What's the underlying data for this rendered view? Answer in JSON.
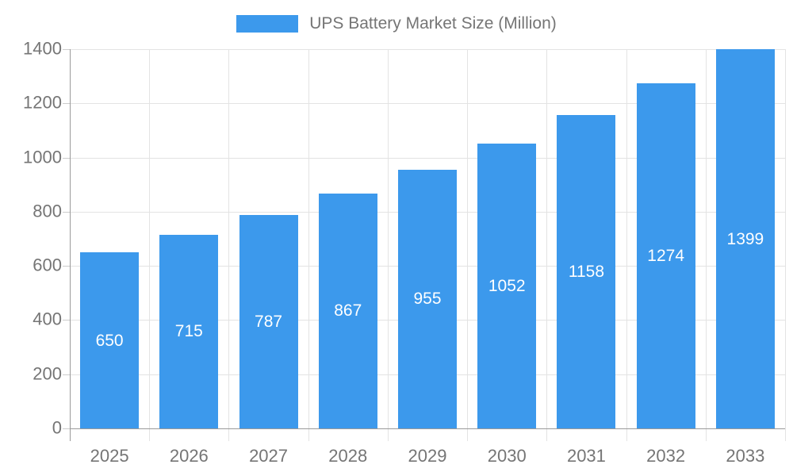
{
  "chart_data": {
    "type": "bar",
    "title": "UPS Battery Market Size (Million)",
    "legend": "UPS Battery Market Size (Million)",
    "categories": [
      "2025",
      "2026",
      "2027",
      "2028",
      "2029",
      "2030",
      "2031",
      "2032",
      "2033"
    ],
    "values": [
      650,
      715,
      787,
      867,
      955,
      1052,
      1158,
      1274,
      1399
    ],
    "xlabel": "",
    "ylabel": "",
    "ylim": [
      0,
      1400
    ],
    "yticks": [
      0,
      200,
      400,
      600,
      800,
      1000,
      1200,
      1400
    ],
    "grid": true,
    "legend_position": "top",
    "bar_color": "#3C99EC",
    "bar_label_color": "#ffffff",
    "grid_color": "#e3e3e3",
    "tick_stub_color": "#cccccc",
    "axis_color": "#9a9a9a",
    "text_color": "#757575",
    "background_color": "#ffffff"
  }
}
